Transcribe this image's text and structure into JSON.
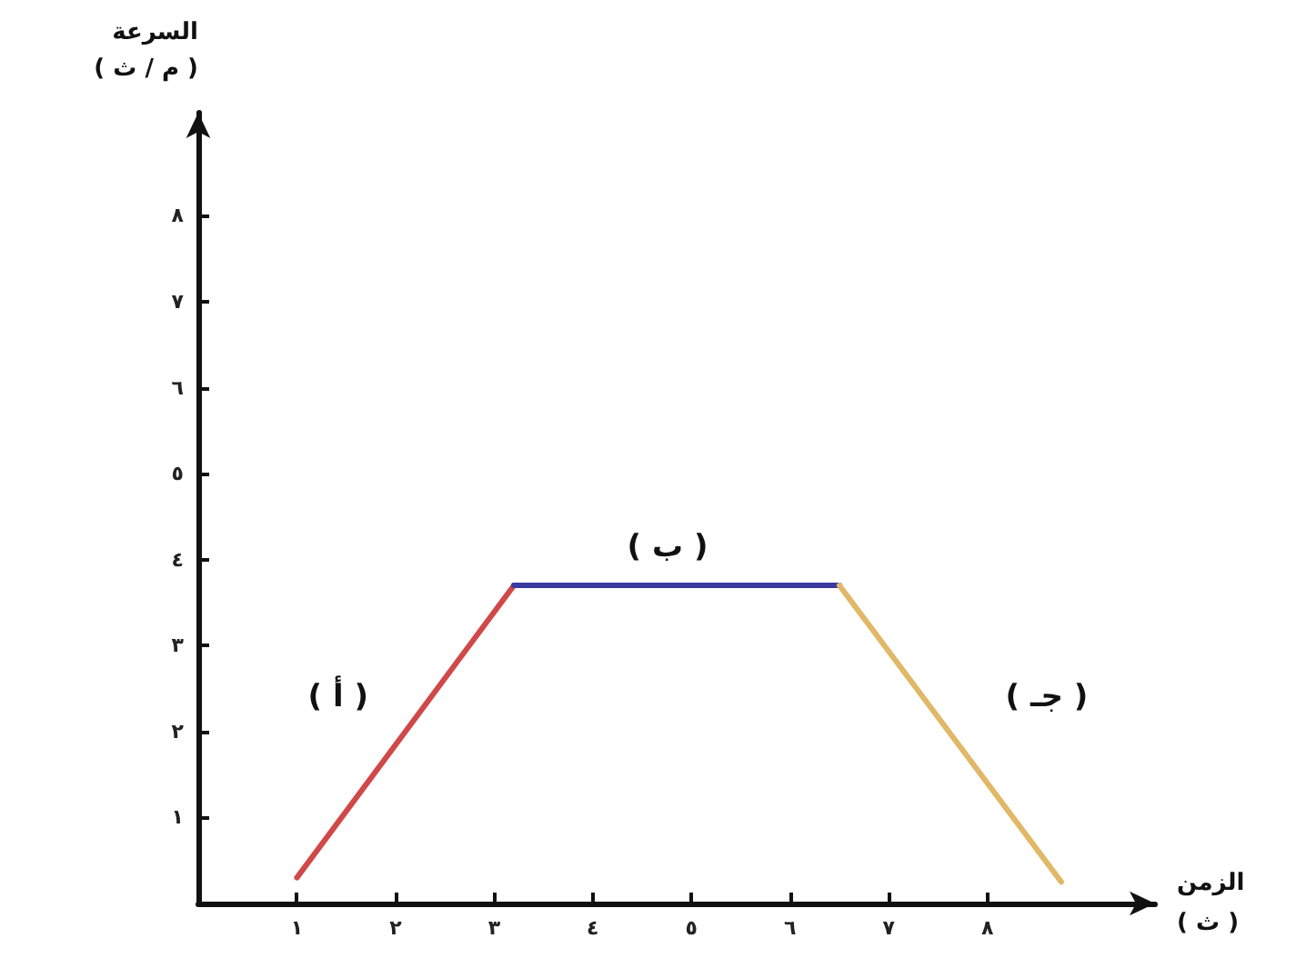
{
  "chart_data": {
    "type": "line",
    "xlabel": "الزمن\n( ث )",
    "ylabel": "السرعة\n( م / ث )",
    "series": [
      {
        "color": "#d04848",
        "x": [
          1,
          3.2
        ],
        "values": [
          0.3,
          3.7
        ]
      },
      {
        "color": "#3a3aa0",
        "x": [
          3.2,
          6.5
        ],
        "values": [
          3.7,
          3.7
        ]
      },
      {
        "color": "#e0b868",
        "x": [
          6.5,
          8.75
        ],
        "values": [
          3.7,
          0.25
        ]
      }
    ],
    "xlim": [
      0,
      9.7
    ],
    "ylim": [
      0,
      9.2
    ],
    "xticks": [
      {
        "value": 1,
        "label": "١"
      },
      {
        "value": 2,
        "label": "٢"
      },
      {
        "value": 3,
        "label": "٣"
      },
      {
        "value": 4,
        "label": "٤"
      },
      {
        "value": 5,
        "label": "٥"
      },
      {
        "value": 6,
        "label": "٦"
      },
      {
        "value": 7,
        "label": "٧"
      },
      {
        "value": 8,
        "label": "٨"
      }
    ],
    "yticks": [
      {
        "value": 1,
        "label": "١"
      },
      {
        "value": 2,
        "label": "٢"
      },
      {
        "value": 3,
        "label": "٣"
      },
      {
        "value": 4,
        "label": "٤"
      },
      {
        "value": 5,
        "label": "٥"
      },
      {
        "value": 6,
        "label": "٦"
      },
      {
        "value": 7,
        "label": "٧"
      },
      {
        "value": 8,
        "label": "٨"
      }
    ],
    "annotations": [
      "( أ )",
      "( ب )",
      "( جـ )"
    ],
    "grid": false,
    "marker": "none",
    "line_style": "solid"
  }
}
